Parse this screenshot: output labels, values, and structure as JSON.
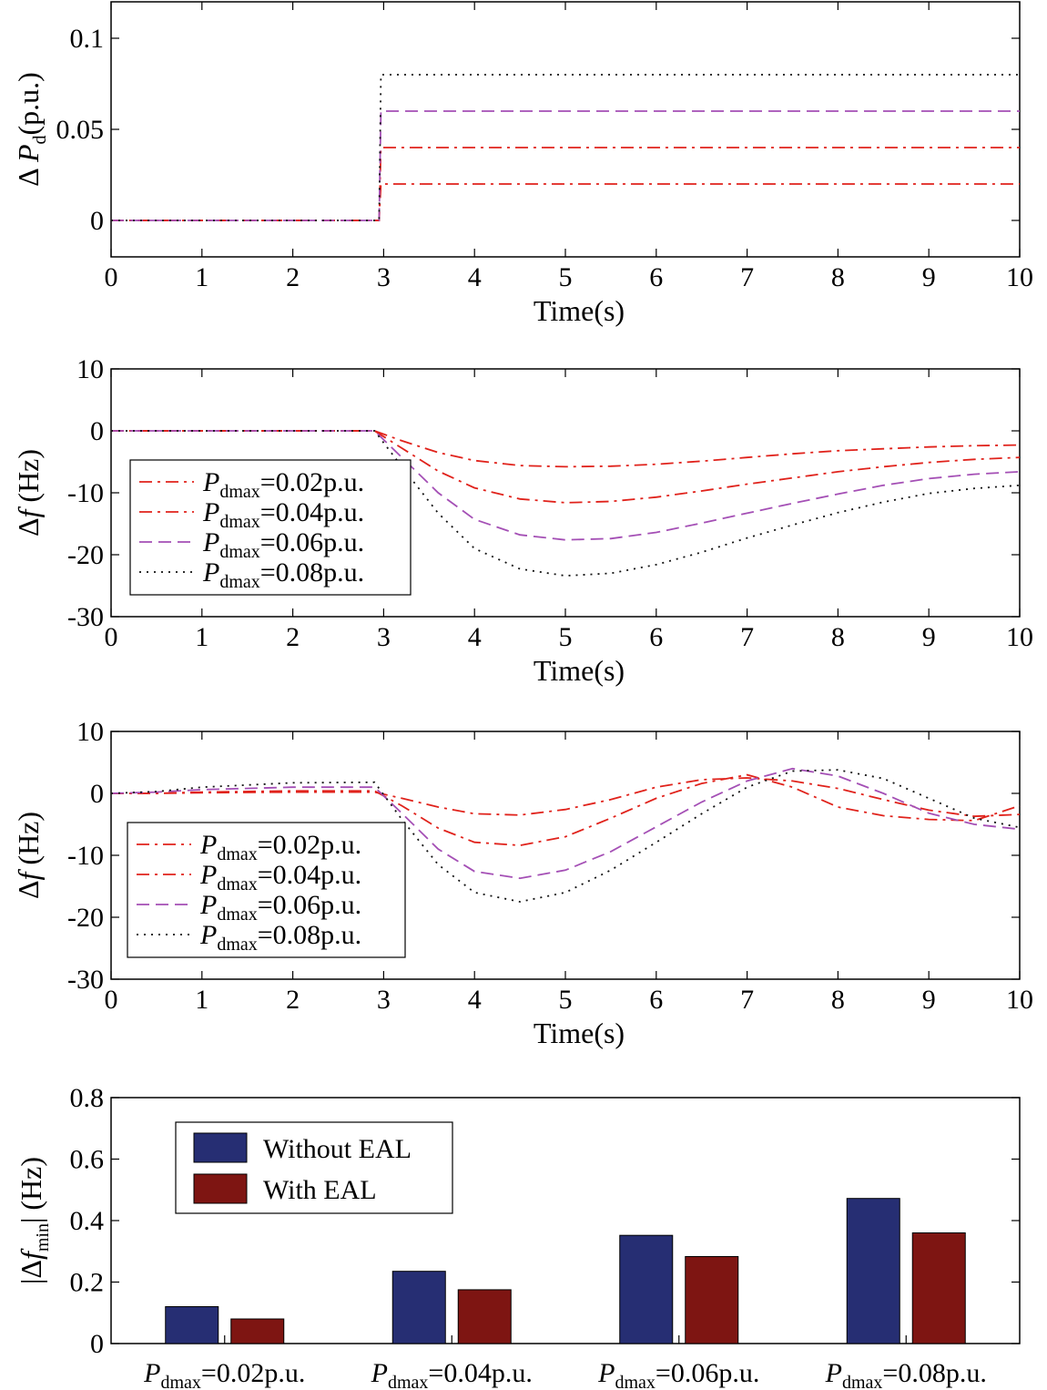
{
  "chart_data": [
    {
      "type": "line",
      "xlabel": "Time(s)",
      "ylabel": "Δ Pd(p.u.)",
      "ylabel_parts": {
        "prefix": "Δ ",
        "var": "P",
        "sub": "d",
        "suffix": "(p.u.)"
      },
      "xlim": [
        0,
        10
      ],
      "ylim": [
        -0.02,
        0.12
      ],
      "xticks": [
        "0",
        "1",
        "2",
        "3",
        "4",
        "5",
        "6",
        "7",
        "8",
        "9",
        "10"
      ],
      "yticks": [
        {
          "v": 0,
          "label": "0"
        },
        {
          "v": 0.05,
          "label": "0.05"
        },
        {
          "v": 0.1,
          "label": "0.1"
        }
      ],
      "series": [
        {
          "name": "Pdmax=0.02p.u.",
          "color": "#e0221b",
          "dash": "dashdot",
          "x": [
            0,
            2.95,
            2.97,
            10
          ],
          "y": [
            0,
            0,
            0.02,
            0.02
          ]
        },
        {
          "name": "Pdmax=0.04p.u.",
          "color": "#e0221b",
          "dash": "dashdot",
          "x": [
            0,
            2.95,
            2.97,
            10
          ],
          "y": [
            0,
            0,
            0.04,
            0.04
          ]
        },
        {
          "name": "Pdmax=0.06p.u.",
          "color": "#a44fb5",
          "dash": "dash",
          "x": [
            0,
            2.95,
            2.97,
            10
          ],
          "y": [
            0,
            0,
            0.06,
            0.06
          ]
        },
        {
          "name": "Pdmax=0.08p.u.",
          "color": "#111111",
          "dash": "dot",
          "x": [
            0,
            2.95,
            2.97,
            10
          ],
          "y": [
            0,
            0,
            0.08,
            0.08
          ]
        }
      ]
    },
    {
      "type": "line",
      "xlabel": "Time(s)",
      "ylabel": "Δf (Hz)",
      "ylabel_parts": {
        "prefix": "Δ",
        "var": "f",
        "sub": "",
        "suffix": " (Hz)"
      },
      "xlim": [
        0,
        10
      ],
      "ylim": [
        -30,
        10
      ],
      "xticks": [
        "0",
        "1",
        "2",
        "3",
        "4",
        "5",
        "6",
        "7",
        "8",
        "9",
        "10"
      ],
      "yticks": [
        {
          "v": -30,
          "label": "-30"
        },
        {
          "v": -20,
          "label": "-20"
        },
        {
          "v": -10,
          "label": "-10"
        },
        {
          "v": 0,
          "label": "0"
        },
        {
          "v": 10,
          "label": "10"
        }
      ],
      "legend": {
        "position": "lower-left",
        "entries": [
          {
            "var": "P",
            "sub": "dmax",
            "text": "=0.02p.u."
          },
          {
            "var": "P",
            "sub": "dmax",
            "text": "=0.04p.u."
          },
          {
            "var": "P",
            "sub": "dmax",
            "text": "=0.06p.u."
          },
          {
            "var": "P",
            "sub": "dmax",
            "text": "=0.08p.u."
          }
        ]
      },
      "series": [
        {
          "name": "Pdmax=0.02p.u.",
          "color": "#e0221b",
          "dash": "dashdot",
          "x": [
            0,
            2.9,
            3.2,
            3.6,
            4.0,
            4.5,
            5.0,
            5.5,
            6.0,
            6.5,
            7.0,
            7.5,
            8.0,
            8.5,
            9.0,
            9.5,
            10
          ],
          "y": [
            0,
            0,
            -1.6,
            -3.5,
            -4.8,
            -5.6,
            -5.8,
            -5.7,
            -5.4,
            -4.9,
            -4.3,
            -3.7,
            -3.2,
            -2.9,
            -2.6,
            -2.4,
            -2.3
          ]
        },
        {
          "name": "Pdmax=0.04p.u.",
          "color": "#e0221b",
          "dash": "dashdot",
          "x": [
            0,
            2.9,
            3.2,
            3.6,
            4.0,
            4.5,
            5.0,
            5.5,
            6.0,
            6.5,
            7.0,
            7.5,
            8.0,
            8.5,
            9.0,
            9.5,
            10
          ],
          "y": [
            0,
            0,
            -2.8,
            -6.5,
            -9.2,
            -11.0,
            -11.6,
            -11.4,
            -10.7,
            -9.7,
            -8.6,
            -7.6,
            -6.6,
            -5.8,
            -5.1,
            -4.6,
            -4.3
          ]
        },
        {
          "name": "Pdmax=0.06p.u.",
          "color": "#a44fb5",
          "dash": "dash",
          "x": [
            0,
            2.9,
            3.2,
            3.6,
            4.0,
            4.5,
            5.0,
            5.5,
            6.0,
            6.5,
            7.0,
            7.5,
            8.0,
            8.5,
            9.0,
            9.5,
            10
          ],
          "y": [
            0,
            0,
            -4.3,
            -10.0,
            -14.3,
            -16.8,
            -17.6,
            -17.4,
            -16.4,
            -14.9,
            -13.3,
            -11.7,
            -10.2,
            -8.8,
            -7.7,
            -7.0,
            -6.6
          ]
        },
        {
          "name": "Pdmax=0.08p.u.",
          "color": "#111111",
          "dash": "dot",
          "x": [
            0,
            2.9,
            3.2,
            3.6,
            4.0,
            4.5,
            5.0,
            5.5,
            6.0,
            6.5,
            7.0,
            7.5,
            8.0,
            8.5,
            9.0,
            9.5,
            10
          ],
          "y": [
            0,
            0,
            -5.8,
            -13.3,
            -19.0,
            -22.3,
            -23.4,
            -23.0,
            -21.6,
            -19.6,
            -17.3,
            -15.2,
            -13.2,
            -11.5,
            -10.1,
            -9.3,
            -8.8
          ]
        }
      ]
    },
    {
      "type": "line",
      "xlabel": "Time(s)",
      "ylabel": "Δf (Hz)",
      "ylabel_parts": {
        "prefix": "Δ",
        "var": "f",
        "sub": "",
        "suffix": " (Hz)"
      },
      "xlim": [
        0,
        10
      ],
      "ylim": [
        -30,
        10
      ],
      "xticks": [
        "0",
        "1",
        "2",
        "3",
        "4",
        "5",
        "6",
        "7",
        "8",
        "9",
        "10"
      ],
      "yticks": [
        {
          "v": -30,
          "label": "-30"
        },
        {
          "v": -20,
          "label": "-20"
        },
        {
          "v": -10,
          "label": "-10"
        },
        {
          "v": 0,
          "label": "0"
        },
        {
          "v": 10,
          "label": "10"
        }
      ],
      "legend": {
        "position": "lower-left",
        "entries": [
          {
            "var": "P",
            "sub": "dmax",
            "text": "=0.02p.u."
          },
          {
            "var": "P",
            "sub": "dmax",
            "text": "=0.04p.u."
          },
          {
            "var": "P",
            "sub": "dmax",
            "text": "=0.06p.u."
          },
          {
            "var": "P",
            "sub": "dmax",
            "text": "=0.08p.u."
          }
        ]
      },
      "series": [
        {
          "name": "Pdmax=0.02p.u.",
          "color": "#e0221b",
          "dash": "dashdot",
          "x": [
            0,
            0.5,
            1.0,
            2.0,
            2.9,
            3.2,
            3.6,
            4.0,
            4.5,
            5.0,
            5.5,
            6.0,
            6.5,
            7.0,
            7.5,
            8.0,
            8.5,
            9.0,
            9.5,
            10
          ],
          "y": [
            0,
            0,
            0.1,
            0.2,
            0.2,
            -0.8,
            -2.2,
            -3.3,
            -3.5,
            -2.6,
            -1.0,
            1.0,
            2.2,
            2.5,
            2.0,
            0.8,
            -1.0,
            -2.7,
            -3.7,
            -3.4
          ]
        },
        {
          "name": "Pdmax=0.04p.u.",
          "color": "#e0221b",
          "dash": "dashdot",
          "x": [
            0,
            0.5,
            1.0,
            2.0,
            2.9,
            3.2,
            3.6,
            4.0,
            4.5,
            5.0,
            5.5,
            6.0,
            6.5,
            7.0,
            7.5,
            8.0,
            8.5,
            9.0,
            9.5,
            10
          ],
          "y": [
            0,
            0,
            0.2,
            0.4,
            0.4,
            -2.0,
            -5.6,
            -7.9,
            -8.4,
            -7.0,
            -4.0,
            -0.8,
            1.6,
            3.0,
            1.0,
            -2.2,
            -3.6,
            -4.2,
            -4.4,
            -2.0
          ]
        },
        {
          "name": "Pdmax=0.06p.u.",
          "color": "#a44fb5",
          "dash": "dash",
          "x": [
            0,
            0.5,
            1.0,
            2.0,
            2.9,
            3.2,
            3.6,
            4.0,
            4.5,
            5.0,
            5.5,
            6.0,
            6.5,
            7.0,
            7.5,
            8.0,
            8.5,
            9.0,
            9.5,
            10
          ],
          "y": [
            0,
            0.2,
            0.6,
            1.0,
            1.0,
            -3.2,
            -9.0,
            -12.6,
            -13.7,
            -12.4,
            -9.4,
            -5.4,
            -1.4,
            2.0,
            4.0,
            2.8,
            0.0,
            -3.2,
            -5.0,
            -5.8
          ]
        },
        {
          "name": "Pdmax=0.08p.u.",
          "color": "#111111",
          "dash": "dot",
          "x": [
            0,
            0.5,
            1.0,
            2.0,
            2.9,
            3.2,
            3.6,
            4.0,
            4.5,
            5.0,
            5.5,
            6.0,
            6.5,
            7.0,
            7.5,
            8.0,
            8.5,
            9.0,
            9.5,
            10
          ],
          "y": [
            0,
            0.3,
            1.0,
            1.7,
            1.8,
            -4.2,
            -11.5,
            -16.0,
            -17.5,
            -16.0,
            -12.4,
            -7.9,
            -3.3,
            1.0,
            3.6,
            3.8,
            2.4,
            -0.8,
            -4.0,
            -5.5
          ]
        }
      ]
    },
    {
      "type": "bar",
      "ylabel": "|Δfmin| (Hz)",
      "ylabel_parts": {
        "prefix": "|Δ",
        "var": "f",
        "sub": "min",
        "suffix": "| (Hz)"
      },
      "ylim": [
        0,
        0.8
      ],
      "yticks": [
        {
          "v": 0,
          "label": "0"
        },
        {
          "v": 0.2,
          "label": "0.2"
        },
        {
          "v": 0.4,
          "label": "0.4"
        },
        {
          "v": 0.6,
          "label": "0.6"
        },
        {
          "v": 0.8,
          "label": "0.8"
        }
      ],
      "categories": [
        {
          "var": "P",
          "sub": "dmax",
          "text": "=0.02p.u."
        },
        {
          "var": "P",
          "sub": "dmax",
          "text": "=0.04p.u."
        },
        {
          "var": "P",
          "sub": "dmax",
          "text": "=0.06p.u."
        },
        {
          "var": "P",
          "sub": "dmax",
          "text": "=0.08p.u."
        }
      ],
      "legend": {
        "position": "upper-left"
      },
      "series": [
        {
          "name": "Without EAL",
          "color": "#262e73",
          "values": [
            0.12,
            0.235,
            0.352,
            0.472
          ]
        },
        {
          "name": "With EAL",
          "color": "#7e1512",
          "values": [
            0.08,
            0.175,
            0.283,
            0.36
          ]
        }
      ]
    }
  ]
}
